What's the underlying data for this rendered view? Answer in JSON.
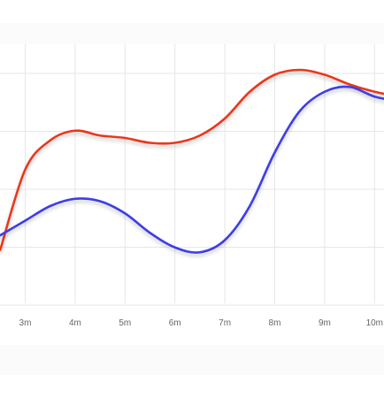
{
  "chart_data": {
    "type": "line",
    "title": "",
    "xlabel": "",
    "ylabel": "",
    "x": [
      "2.5m",
      "3m",
      "3.5m",
      "4m",
      "4.5m",
      "5m",
      "5.5m",
      "6m",
      "6.5m",
      "7m",
      "7.5m",
      "8m",
      "8.5m",
      "9m",
      "9.5m",
      "10m",
      "10.5m"
    ],
    "xticks": [
      "3m",
      "4m",
      "5m",
      "6m",
      "7m",
      "8m",
      "9m",
      "10m"
    ],
    "xlim": [
      2.5,
      10.5
    ],
    "ylim": [
      0,
      100
    ],
    "grid": true,
    "legend": false,
    "series": [
      {
        "color": "#e8381f",
        "values": [
          22,
          55,
          67,
          71,
          69,
          68,
          66,
          66,
          69,
          76,
          87,
          94,
          96,
          94,
          90,
          87,
          85
        ]
      },
      {
        "color": "#3d3de8",
        "values": [
          28,
          34,
          40,
          43,
          42,
          37,
          29,
          23,
          21,
          26,
          40,
          62,
          79,
          87,
          89,
          85,
          83
        ]
      }
    ]
  },
  "colors": {
    "grid": "#e6e6e6",
    "tick_label": "#666666"
  }
}
